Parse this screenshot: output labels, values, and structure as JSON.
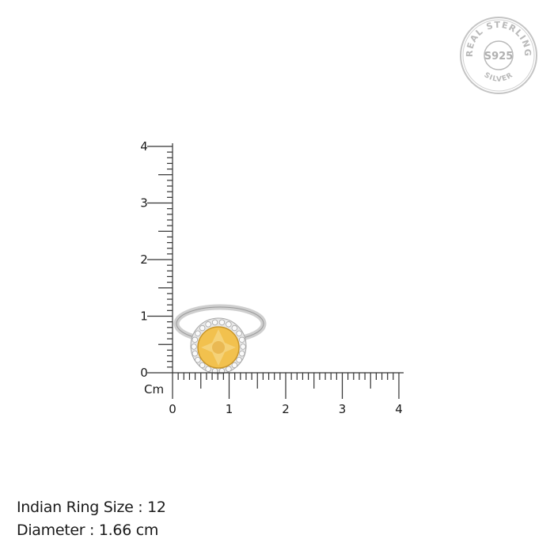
{
  "seal": {
    "top_text": "REAL STERLING",
    "center_text": "S925",
    "bottom_text": "SILVER",
    "color": "#b9b9b9"
  },
  "ruler": {
    "unit_label": "Cm",
    "x_labels": [
      "0",
      "1",
      "2",
      "3",
      "4"
    ],
    "y_labels": [
      "0",
      "1",
      "2",
      "3",
      "4"
    ],
    "range_cm": [
      0,
      4
    ],
    "ticks_per_cm": 10,
    "color": "#333333"
  },
  "product": {
    "stone_color": "#f2c14e",
    "metal_color": "#d8d8d8"
  },
  "info": {
    "ring_size": "Indian Ring Size : 12",
    "diameter": "Diameter : 1.66 cm"
  }
}
